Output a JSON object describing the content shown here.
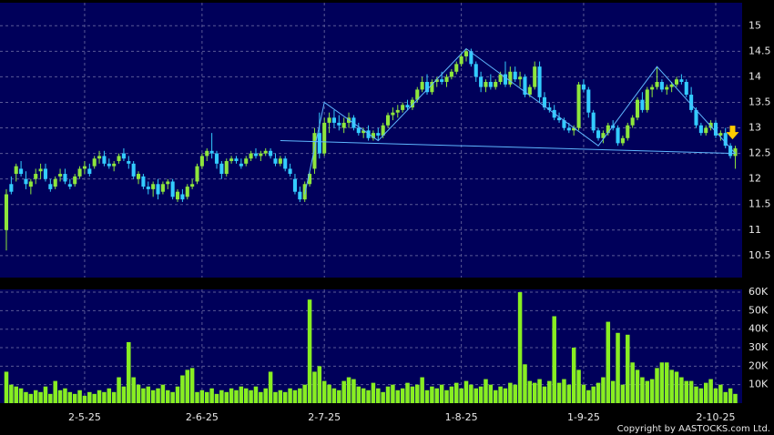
{
  "chart_data": {
    "type": "candlestick",
    "up_color": "#8ee63c",
    "down_color": "#33ccff",
    "ylim": [
      10.07,
      15.45
    ],
    "yticks": [
      10.5,
      11,
      11.5,
      12,
      12.5,
      13,
      13.5,
      14,
      14.5,
      15
    ],
    "grid": true,
    "xlim": [
      -1.3,
      150.4
    ],
    "xticks": [
      {
        "value": 16,
        "label": "2-5-25"
      },
      {
        "value": 40,
        "label": "2-6-25"
      },
      {
        "value": 65,
        "label": "2-7-25"
      },
      {
        "value": 93,
        "label": "1-8-25"
      },
      {
        "value": 118,
        "label": "1-9-25"
      },
      {
        "value": 145,
        "label": "2-10-25"
      }
    ],
    "ohlc": [
      [
        11.0,
        11.8,
        10.6,
        11.7
      ],
      [
        11.9,
        12.05,
        11.7,
        11.75
      ],
      [
        12.1,
        12.3,
        11.95,
        12.25
      ],
      [
        12.2,
        12.35,
        12.05,
        12.1
      ],
      [
        12.0,
        12.15,
        11.8,
        11.9
      ],
      [
        11.85,
        12.0,
        11.7,
        11.95
      ],
      [
        12.0,
        12.2,
        11.9,
        12.1
      ],
      [
        12.15,
        12.3,
        12.0,
        12.2
      ],
      [
        12.2,
        12.3,
        11.95,
        12.0
      ],
      [
        11.9,
        12.0,
        11.75,
        11.8
      ],
      [
        11.85,
        12.05,
        11.8,
        12.0
      ],
      [
        12.05,
        12.2,
        11.95,
        12.1
      ],
      [
        12.1,
        12.2,
        11.9,
        11.95
      ],
      [
        11.9,
        12.0,
        11.8,
        11.85
      ],
      [
        11.9,
        12.1,
        11.85,
        12.05
      ],
      [
        12.05,
        12.25,
        12.0,
        12.2
      ],
      [
        12.2,
        12.35,
        12.1,
        12.25
      ],
      [
        12.2,
        12.3,
        12.05,
        12.1
      ],
      [
        12.25,
        12.45,
        12.2,
        12.4
      ],
      [
        12.4,
        12.55,
        12.3,
        12.45
      ],
      [
        12.45,
        12.55,
        12.25,
        12.3
      ],
      [
        12.3,
        12.4,
        12.2,
        12.25
      ],
      [
        12.25,
        12.35,
        12.15,
        12.3
      ],
      [
        12.35,
        12.5,
        12.3,
        12.45
      ],
      [
        12.5,
        12.6,
        12.35,
        12.4
      ],
      [
        12.35,
        12.45,
        12.2,
        12.3
      ],
      [
        12.3,
        12.35,
        12.0,
        12.05
      ],
      [
        12.0,
        12.15,
        11.9,
        12.1
      ],
      [
        12.05,
        12.1,
        11.8,
        11.85
      ],
      [
        11.85,
        11.95,
        11.7,
        11.8
      ],
      [
        11.8,
        11.95,
        11.65,
        11.9
      ],
      [
        11.9,
        12.0,
        11.6,
        11.7
      ],
      [
        11.75,
        11.95,
        11.7,
        11.9
      ],
      [
        11.9,
        12.0,
        11.8,
        11.95
      ],
      [
        11.95,
        12.0,
        11.6,
        11.65
      ],
      [
        11.6,
        11.8,
        11.55,
        11.75
      ],
      [
        11.7,
        11.8,
        11.55,
        11.6
      ],
      [
        11.65,
        11.9,
        11.6,
        11.85
      ],
      [
        11.85,
        12.0,
        11.8,
        11.9
      ],
      [
        11.95,
        12.3,
        11.9,
        12.25
      ],
      [
        12.25,
        12.5,
        12.2,
        12.45
      ],
      [
        12.45,
        12.6,
        12.35,
        12.55
      ],
      [
        12.55,
        12.9,
        12.4,
        12.5
      ],
      [
        12.5,
        12.55,
        12.2,
        12.3
      ],
      [
        12.3,
        12.35,
        12.0,
        12.1
      ],
      [
        12.1,
        12.4,
        12.05,
        12.35
      ],
      [
        12.35,
        12.45,
        12.3,
        12.4
      ],
      [
        12.4,
        12.45,
        12.3,
        12.35
      ],
      [
        12.3,
        12.4,
        12.2,
        12.25
      ],
      [
        12.3,
        12.45,
        12.25,
        12.4
      ],
      [
        12.4,
        12.55,
        12.35,
        12.5
      ],
      [
        12.5,
        12.6,
        12.4,
        12.45
      ],
      [
        12.45,
        12.55,
        12.35,
        12.5
      ],
      [
        12.5,
        12.6,
        12.45,
        12.55
      ],
      [
        12.55,
        12.6,
        12.4,
        12.45
      ],
      [
        12.4,
        12.5,
        12.25,
        12.3
      ],
      [
        12.3,
        12.45,
        12.25,
        12.4
      ],
      [
        12.4,
        12.45,
        12.15,
        12.2
      ],
      [
        12.2,
        12.3,
        12.05,
        12.1
      ],
      [
        12.0,
        12.1,
        11.7,
        11.75
      ],
      [
        11.75,
        11.85,
        11.55,
        11.6
      ],
      [
        11.6,
        11.95,
        11.55,
        11.9
      ],
      [
        11.9,
        12.15,
        11.85,
        12.1
      ],
      [
        12.2,
        13.0,
        12.1,
        12.9
      ],
      [
        12.9,
        13.3,
        12.4,
        12.5
      ],
      [
        12.5,
        13.2,
        12.45,
        13.1
      ],
      [
        13.1,
        13.3,
        12.9,
        13.2
      ],
      [
        13.2,
        13.35,
        13.0,
        13.1
      ],
      [
        13.1,
        13.25,
        12.95,
        13.05
      ],
      [
        13.0,
        13.2,
        12.9,
        13.1
      ],
      [
        13.1,
        13.3,
        13.0,
        13.2
      ],
      [
        13.2,
        13.25,
        12.95,
        13.0
      ],
      [
        13.0,
        13.1,
        12.85,
        12.9
      ],
      [
        12.9,
        13.0,
        12.8,
        12.95
      ],
      [
        12.95,
        13.05,
        12.75,
        12.8
      ],
      [
        12.8,
        12.95,
        12.75,
        12.9
      ],
      [
        12.9,
        13.0,
        12.75,
        12.85
      ],
      [
        12.85,
        13.1,
        12.8,
        13.05
      ],
      [
        13.05,
        13.3,
        13.0,
        13.25
      ],
      [
        13.25,
        13.4,
        13.15,
        13.3
      ],
      [
        13.3,
        13.45,
        13.2,
        13.35
      ],
      [
        13.35,
        13.5,
        13.3,
        13.45
      ],
      [
        13.45,
        13.55,
        13.35,
        13.4
      ],
      [
        13.4,
        13.6,
        13.35,
        13.55
      ],
      [
        13.55,
        13.8,
        13.5,
        13.75
      ],
      [
        13.75,
        14.0,
        13.7,
        13.9
      ],
      [
        13.9,
        14.05,
        13.65,
        13.7
      ],
      [
        13.7,
        13.95,
        13.65,
        13.9
      ],
      [
        13.9,
        14.0,
        13.8,
        13.95
      ],
      [
        13.95,
        14.1,
        13.85,
        13.9
      ],
      [
        13.9,
        14.05,
        13.8,
        14.0
      ],
      [
        14.0,
        14.15,
        13.95,
        14.1
      ],
      [
        14.1,
        14.3,
        14.05,
        14.25
      ],
      [
        14.25,
        14.45,
        14.2,
        14.4
      ],
      [
        14.4,
        14.55,
        14.3,
        14.5
      ],
      [
        14.5,
        14.55,
        14.2,
        14.25
      ],
      [
        14.25,
        14.3,
        13.9,
        14.0
      ],
      [
        14.0,
        14.1,
        13.7,
        13.8
      ],
      [
        13.8,
        13.95,
        13.7,
        13.9
      ],
      [
        13.9,
        14.05,
        13.75,
        13.8
      ],
      [
        13.8,
        13.95,
        13.75,
        13.9
      ],
      [
        13.9,
        14.1,
        13.85,
        14.05
      ],
      [
        14.05,
        14.3,
        13.8,
        13.85
      ],
      [
        13.85,
        14.2,
        13.8,
        14.1
      ],
      [
        14.1,
        14.2,
        13.9,
        13.95
      ],
      [
        13.95,
        14.1,
        13.8,
        14.0
      ],
      [
        14.0,
        14.05,
        13.6,
        13.65
      ],
      [
        13.65,
        13.85,
        13.6,
        13.8
      ],
      [
        13.8,
        14.3,
        13.75,
        14.2
      ],
      [
        14.2,
        14.3,
        13.5,
        13.6
      ],
      [
        13.6,
        13.7,
        13.35,
        13.4
      ],
      [
        13.4,
        13.5,
        13.3,
        13.35
      ],
      [
        13.35,
        13.45,
        13.15,
        13.2
      ],
      [
        13.2,
        13.3,
        13.1,
        13.15
      ],
      [
        13.15,
        13.2,
        12.95,
        13.0
      ],
      [
        13.0,
        13.1,
        12.9,
        12.95
      ],
      [
        12.95,
        13.05,
        12.85,
        13.0
      ],
      [
        13.0,
        13.9,
        12.95,
        13.85
      ],
      [
        13.85,
        13.95,
        13.7,
        13.75
      ],
      [
        13.75,
        13.8,
        13.2,
        13.3
      ],
      [
        13.3,
        13.35,
        12.9,
        12.95
      ],
      [
        12.95,
        13.0,
        12.75,
        12.8
      ],
      [
        12.8,
        12.95,
        12.7,
        12.9
      ],
      [
        12.9,
        13.1,
        12.85,
        13.05
      ],
      [
        13.05,
        13.15,
        12.95,
        13.0
      ],
      [
        13.0,
        13.05,
        12.65,
        12.7
      ],
      [
        12.7,
        12.85,
        12.65,
        12.8
      ],
      [
        12.8,
        13.1,
        12.75,
        13.05
      ],
      [
        13.05,
        13.25,
        13.0,
        13.2
      ],
      [
        13.2,
        13.6,
        13.15,
        13.55
      ],
      [
        13.55,
        13.7,
        13.3,
        13.35
      ],
      [
        13.35,
        13.8,
        13.3,
        13.75
      ],
      [
        13.75,
        13.85,
        13.6,
        13.8
      ],
      [
        13.8,
        14.2,
        13.75,
        13.9
      ],
      [
        13.9,
        13.95,
        13.7,
        13.75
      ],
      [
        13.75,
        13.85,
        13.65,
        13.8
      ],
      [
        13.8,
        13.9,
        13.7,
        13.85
      ],
      [
        13.85,
        14.0,
        13.8,
        13.95
      ],
      [
        13.95,
        14.05,
        13.85,
        13.9
      ],
      [
        13.9,
        13.95,
        13.6,
        13.65
      ],
      [
        13.65,
        13.8,
        13.3,
        13.35
      ],
      [
        13.35,
        13.4,
        13.0,
        13.05
      ],
      [
        13.05,
        13.1,
        12.85,
        12.9
      ],
      [
        12.9,
        13.05,
        12.85,
        13.0
      ],
      [
        13.0,
        13.15,
        12.95,
        13.1
      ],
      [
        13.1,
        13.15,
        12.8,
        12.85
      ],
      [
        12.85,
        12.95,
        12.75,
        12.9
      ],
      [
        12.9,
        13.0,
        12.6,
        12.65
      ],
      [
        12.65,
        12.7,
        12.4,
        12.45
      ],
      [
        12.45,
        12.65,
        12.2,
        12.6
      ]
    ],
    "trend_lines": [
      {
        "color": "#5fb7ff",
        "points": [
          [
            61,
            11.7
          ],
          [
            65,
            13.5
          ],
          [
            76,
            12.75
          ],
          [
            94,
            14.55
          ],
          [
            121,
            12.65
          ],
          [
            133,
            14.2
          ],
          [
            149,
            12.5
          ]
        ]
      },
      {
        "color": "#5fb7ff",
        "points": [
          [
            56,
            12.75
          ],
          [
            149,
            12.5
          ]
        ]
      }
    ],
    "volume": {
      "color": "#88ee22",
      "ylim": [
        0,
        61500
      ],
      "yticks": [
        {
          "value": 10000,
          "label": "10K"
        },
        {
          "value": 20000,
          "label": "20K"
        },
        {
          "value": 30000,
          "label": "30K"
        },
        {
          "value": 40000,
          "label": "40K"
        },
        {
          "value": 50000,
          "label": "50K"
        },
        {
          "value": 60000,
          "label": "60K"
        }
      ],
      "values": [
        17000,
        10000,
        9000,
        8000,
        6000,
        5000,
        7000,
        6000,
        9000,
        5000,
        12000,
        7000,
        8000,
        6000,
        5000,
        7000,
        4000,
        6000,
        5000,
        7000,
        6000,
        8000,
        6000,
        14000,
        9000,
        33000,
        14000,
        10000,
        8000,
        9000,
        7000,
        8000,
        10000,
        7000,
        6000,
        9000,
        15000,
        18000,
        19000,
        6000,
        7000,
        6000,
        8000,
        5000,
        7000,
        6000,
        8000,
        7000,
        9000,
        8000,
        7000,
        9000,
        6000,
        8000,
        17000,
        6000,
        7000,
        6000,
        8000,
        7000,
        8000,
        10000,
        56000,
        17000,
        20000,
        12000,
        10000,
        8000,
        7000,
        12000,
        14000,
        13000,
        9000,
        8000,
        7000,
        11000,
        8000,
        6000,
        9000,
        10000,
        7000,
        8000,
        11000,
        9000,
        10000,
        14000,
        7000,
        9000,
        8000,
        10000,
        7000,
        9000,
        11000,
        8000,
        12000,
        10000,
        8000,
        9000,
        13000,
        10000,
        7000,
        9000,
        8000,
        11000,
        10000,
        60000,
        21000,
        12000,
        11000,
        13000,
        9000,
        12000,
        47000,
        11000,
        13000,
        10000,
        30000,
        18000,
        10000,
        7000,
        9000,
        11000,
        14000,
        44000,
        12000,
        38000,
        10000,
        37000,
        22000,
        18000,
        14000,
        12000,
        13000,
        19000,
        22000,
        22000,
        18000,
        17000,
        14000,
        12000,
        12000,
        9000,
        8000,
        11000,
        13000,
        8000,
        10000,
        6000,
        8000,
        5000
      ]
    },
    "copyright": "Copyright by AASTOCKS.com Ltd."
  }
}
